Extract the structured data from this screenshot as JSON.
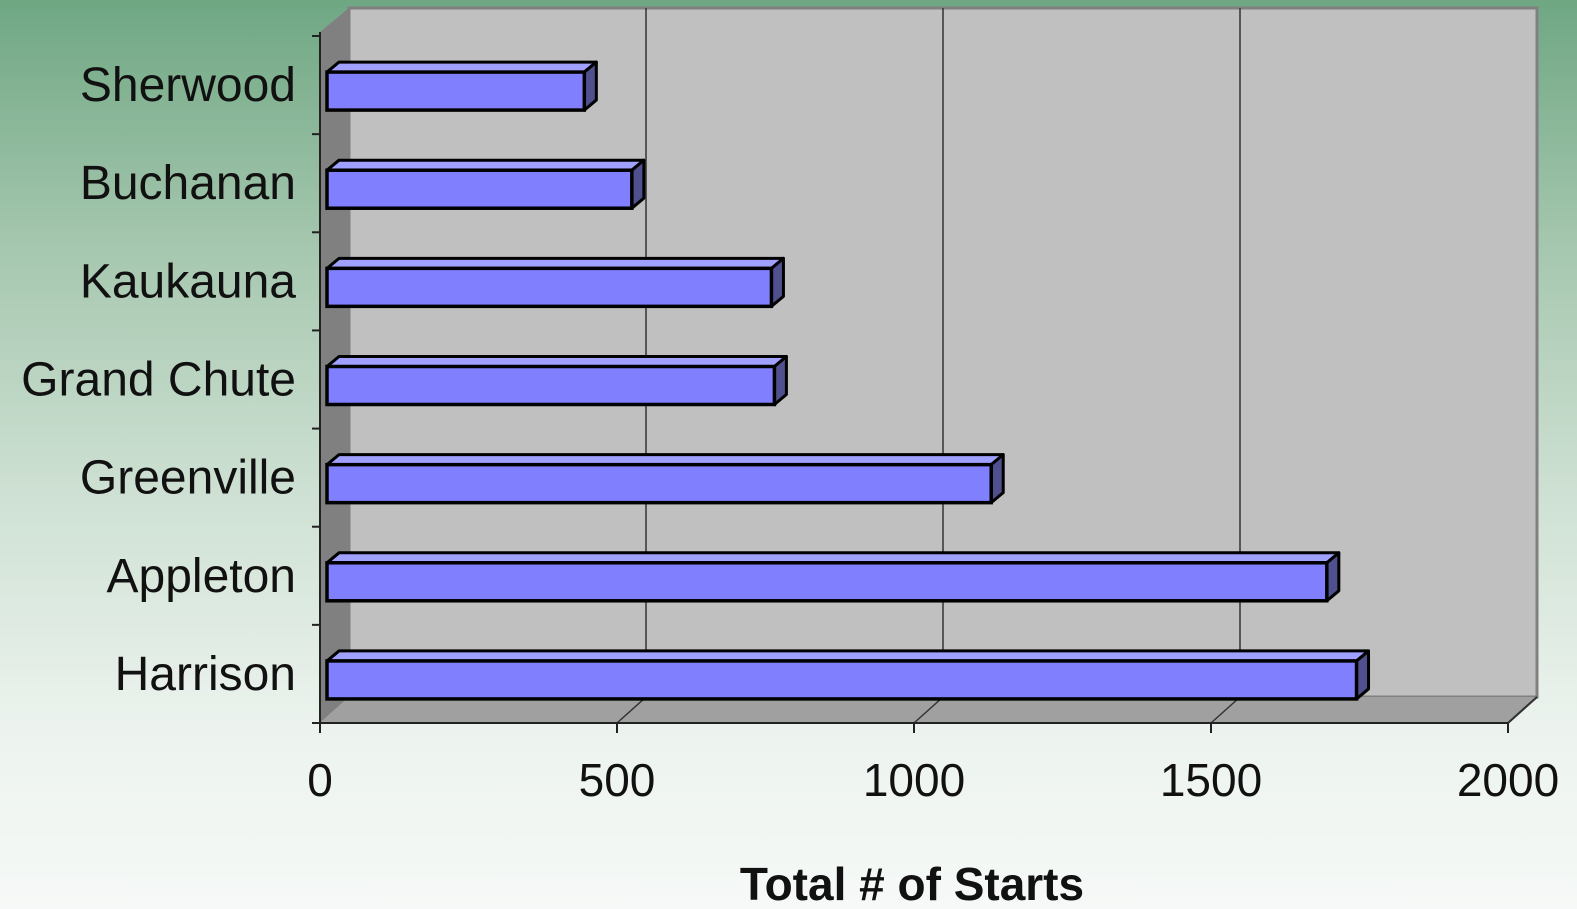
{
  "colors": {
    "bar_front": "#8080ff",
    "bar_top": "#a0a0ff",
    "bar_side": "#50508f",
    "wall": "#c0c0c0",
    "side_wall": "#808080",
    "floor": "#a0a0a0",
    "gridline": "#333333"
  },
  "chart_data": {
    "type": "bar",
    "orientation": "horizontal",
    "style": "3d",
    "title": "",
    "xlabel": "Total # of Starts",
    "ylabel": "",
    "categories": [
      "Harrison",
      "Appleton",
      "Greenville",
      "Grand Chute",
      "Kaukauna",
      "Buchanan",
      "Sherwood"
    ],
    "values": [
      1745,
      1695,
      1130,
      765,
      760,
      525,
      445
    ],
    "xlim": [
      0,
      2000
    ],
    "xticks": [
      "0",
      "500",
      "1000",
      "1500",
      "2000"
    ],
    "grid": "vertical",
    "legend": "none"
  }
}
